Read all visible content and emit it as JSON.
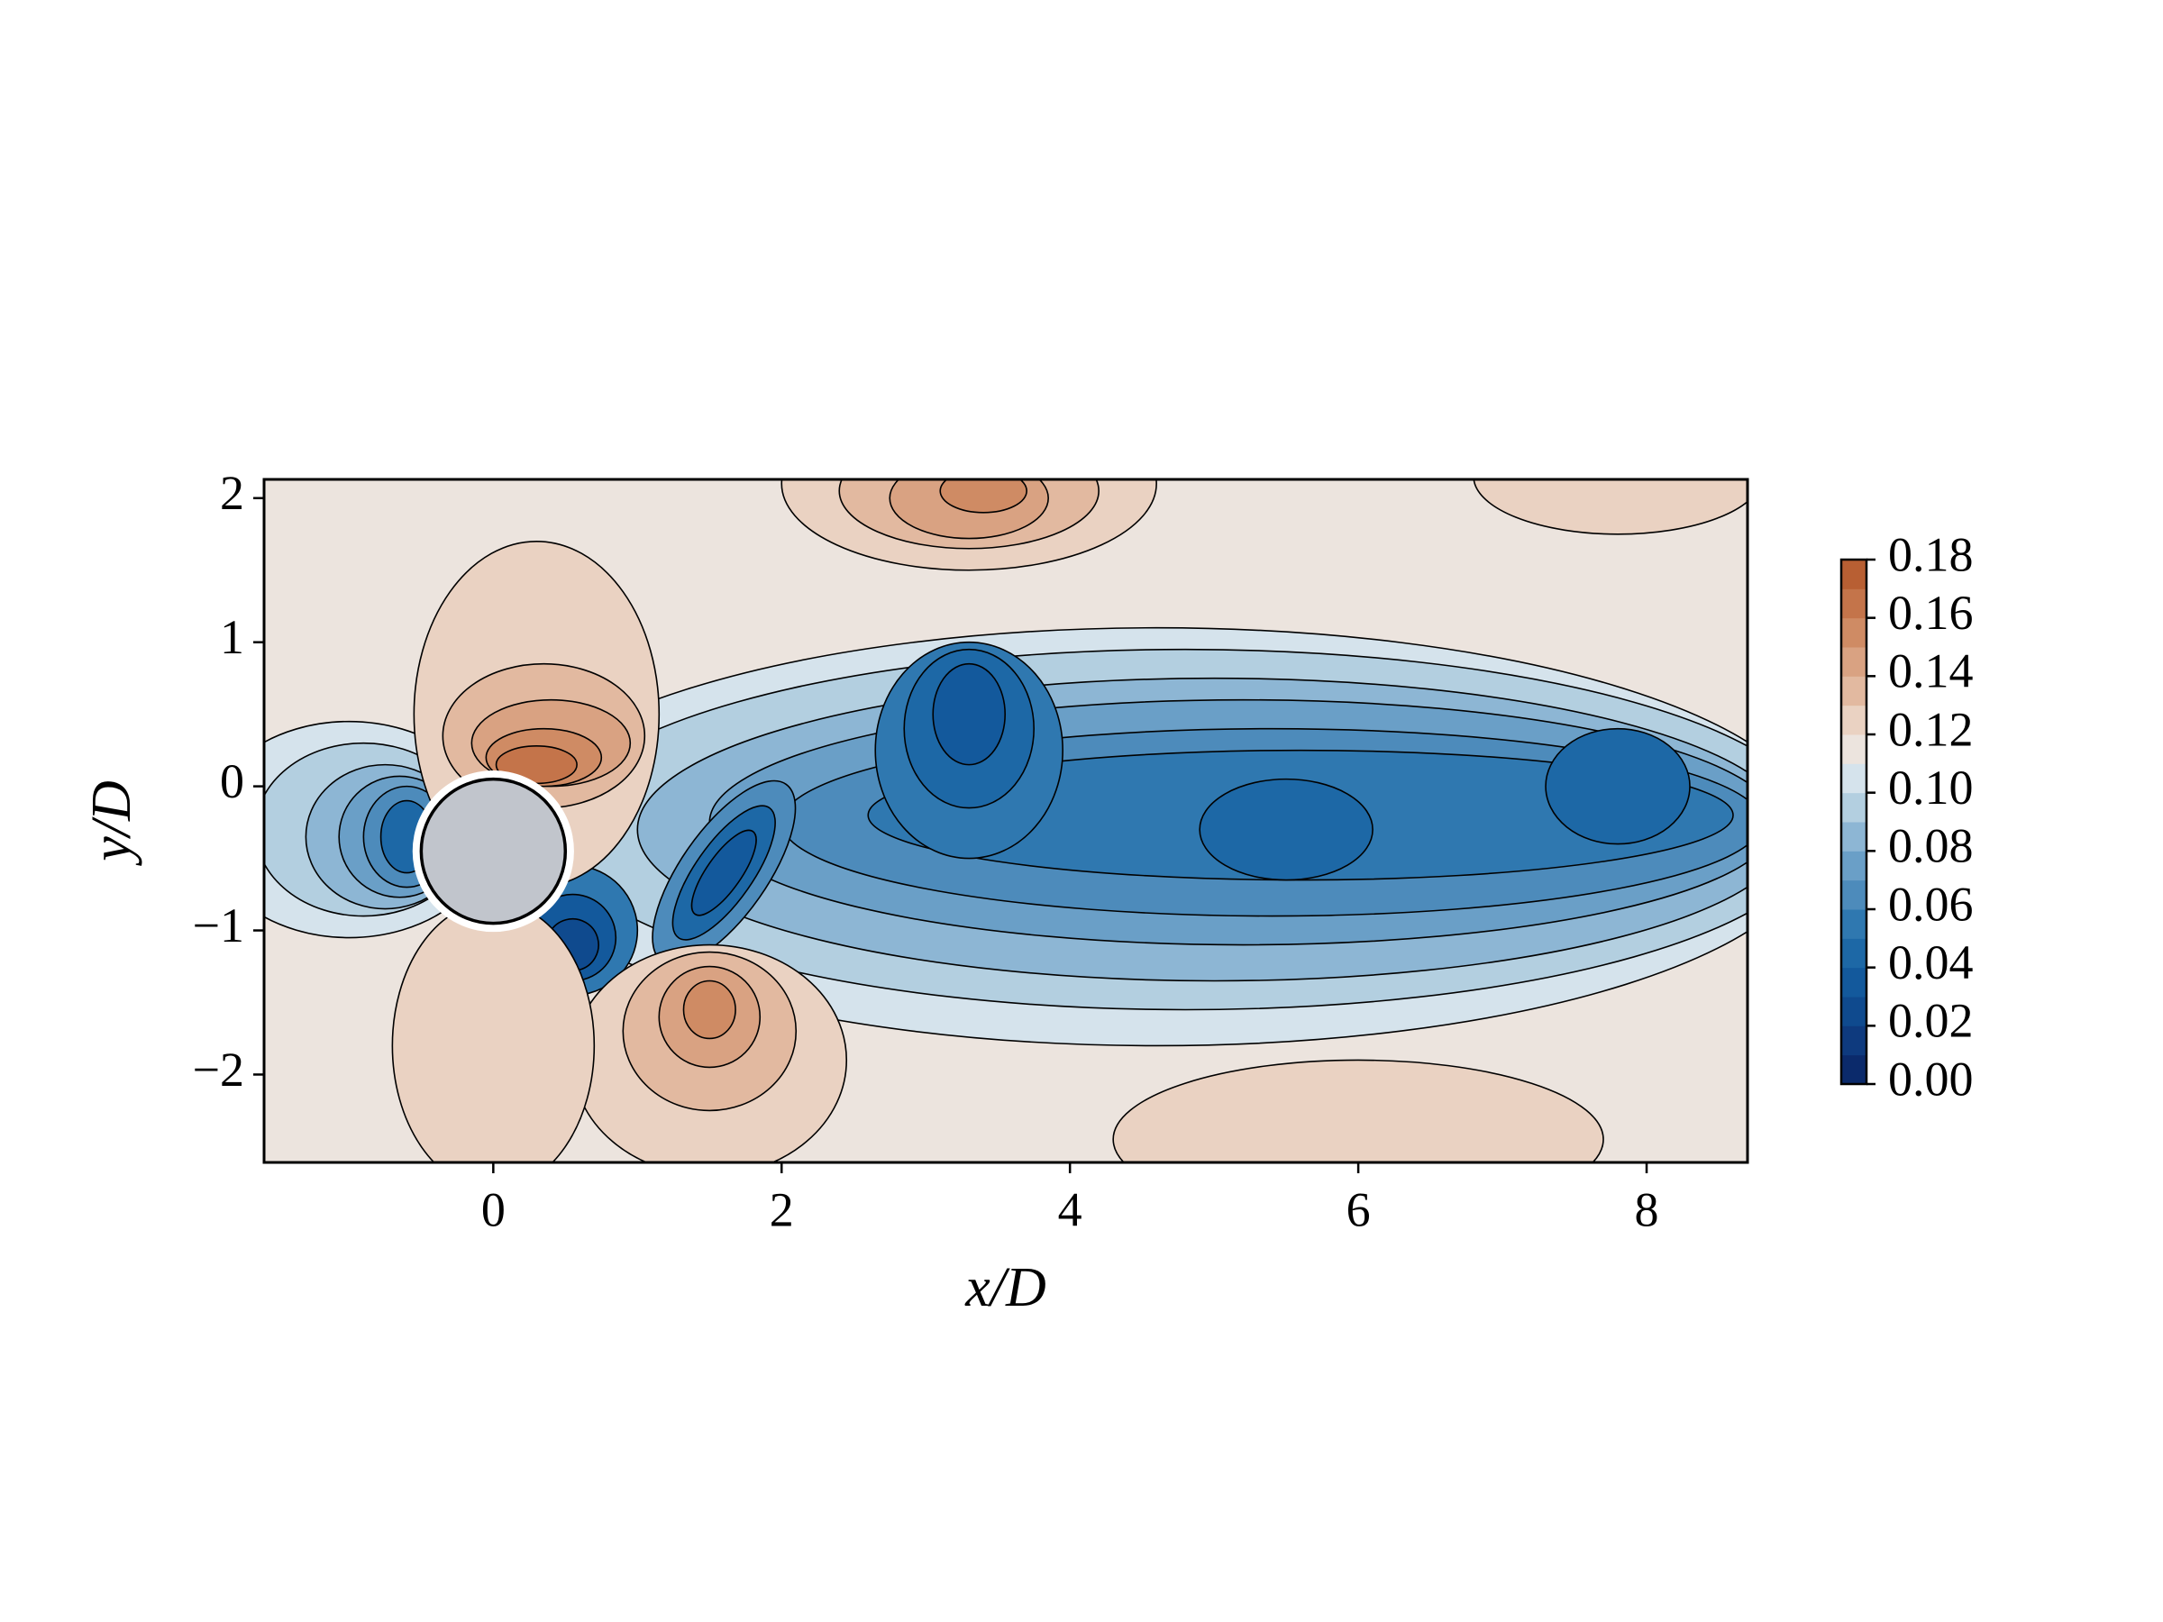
{
  "chart_data": {
    "type": "contour",
    "xlabel": "x/D",
    "ylabel": "y/D",
    "xlim": [
      -1.59,
      8.7
    ],
    "ylim": [
      -2.61,
      2.13
    ],
    "xticks": [
      0,
      2,
      4,
      6,
      8
    ],
    "yticks": [
      {
        "value": -2,
        "label": "−2"
      },
      {
        "value": -1,
        "label": "−1"
      },
      0,
      1,
      2
    ],
    "levels": [
      0,
      0.01,
      0.02,
      0.03,
      0.04,
      0.05,
      0.06,
      0.07,
      0.08,
      0.09,
      0.1,
      0.11,
      0.12,
      0.13,
      0.14,
      0.15,
      0.16,
      0.17,
      0.18
    ],
    "colors": [
      "#0b2a6b",
      "#0e3a7e",
      "#0f4a8e",
      "#13599c",
      "#1d68a6",
      "#2f78b0",
      "#4d8bbb",
      "#6a9fc7",
      "#8db6d4",
      "#b3cfe0",
      "#d5e3ec",
      "#ece4de",
      "#ead2c2",
      "#e2b9a0",
      "#d9a282",
      "#cf8b64",
      "#c4744a",
      "#b85f33"
    ],
    "colorbar_ticks": [
      {
        "value": 0,
        "label": "0.00"
      },
      0.02,
      0.04,
      0.06,
      0.08,
      {
        "value": 0.1,
        "label": "0.10"
      },
      0.12,
      0.14,
      0.16,
      0.18
    ]
  }
}
